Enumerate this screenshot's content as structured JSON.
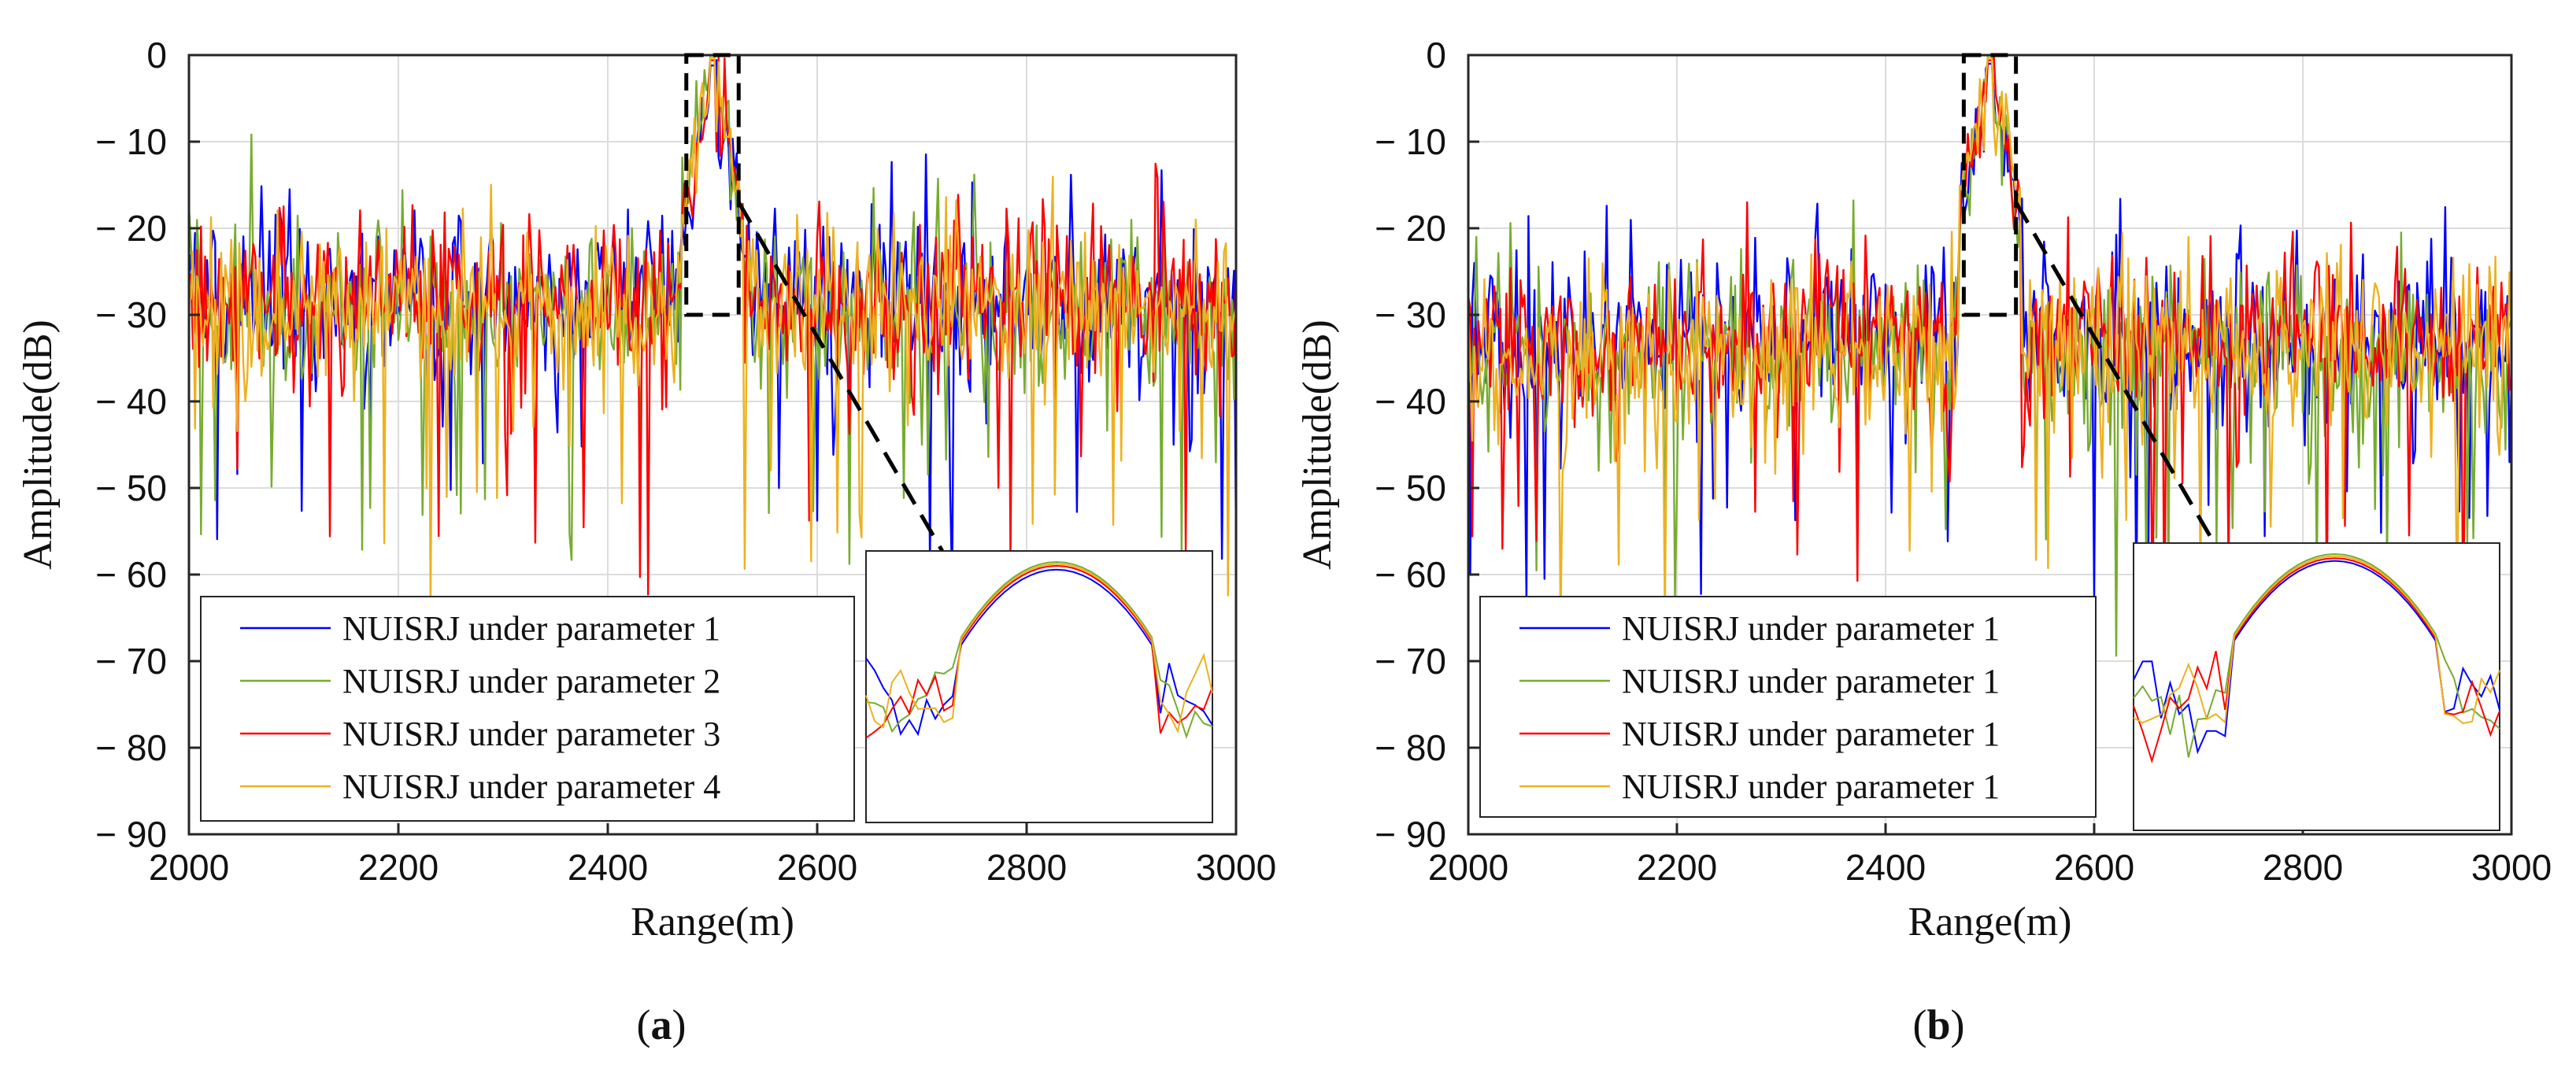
{
  "colors": {
    "series": [
      "#0000ff",
      "#77ac30",
      "#ff0000",
      "#edb120"
    ],
    "axis": "#262626",
    "grid": "#dcdcdc",
    "zoom_box": "#000000"
  },
  "chart_data": [
    {
      "type": "line",
      "panel_label": "a",
      "xlabel": "Range(m)",
      "ylabel": "Amplitude(dB)",
      "xlim": [
        2000,
        3000
      ],
      "ylim": [
        -90,
        0
      ],
      "grid": true,
      "x_ticks": [
        2000,
        2200,
        2400,
        2600,
        2800,
        3000
      ],
      "y_ticks": [
        0,
        -10,
        -20,
        -30,
        -40,
        -50,
        -60,
        -70,
        -80,
        -90
      ],
      "y_tick_labels": [
        "0",
        "− 10",
        "− 20",
        "− 30",
        "− 40",
        "− 50",
        "− 60",
        "− 70",
        "− 80",
        "− 90"
      ],
      "legend_position": "bottom-left",
      "inset_position": "bottom-right",
      "zoom_region": {
        "x": [
          2475,
          2525
        ],
        "y": [
          -30,
          0
        ]
      },
      "peak": {
        "x": 2500,
        "y": 0
      },
      "series": [
        {
          "name": "NUISRJ under parameter 1",
          "color": "#0000ff",
          "noise_floor_db": -28,
          "zoom_peak_db": -1.2
        },
        {
          "name": "NUISRJ under parameter 2",
          "color": "#77ac30",
          "noise_floor_db": -30,
          "zoom_peak_db": 0
        },
        {
          "name": "NUISRJ under parameter 3",
          "color": "#ff0000",
          "noise_floor_db": -28,
          "zoom_peak_db": -0.6
        },
        {
          "name": "NUISRJ under parameter 4",
          "color": "#edb120",
          "noise_floor_db": -29,
          "zoom_peak_db": -0.3
        }
      ]
    },
    {
      "type": "line",
      "panel_label": "b",
      "xlabel": "Range(m)",
      "ylabel": "Amplitude(dB)",
      "xlim": [
        2000,
        3000
      ],
      "ylim": [
        -90,
        0
      ],
      "grid": true,
      "x_ticks": [
        2000,
        2200,
        2400,
        2600,
        2800,
        3000
      ],
      "y_ticks": [
        0,
        -10,
        -20,
        -30,
        -40,
        -50,
        -60,
        -70,
        -80,
        -90
      ],
      "y_tick_labels": [
        "0",
        "− 10",
        "− 20",
        "− 30",
        "− 40",
        "− 50",
        "− 60",
        "− 70",
        "− 80",
        "− 90"
      ],
      "legend_position": "bottom-left",
      "inset_position": "bottom-right",
      "zoom_region": {
        "x": [
          2475,
          2525
        ],
        "y": [
          -30,
          0
        ]
      },
      "peak": {
        "x": 2500,
        "y": 0
      },
      "series": [
        {
          "name": "NUISRJ under parameter 1",
          "color": "#0000ff",
          "noise_floor_db": -33,
          "zoom_peak_db": -1.0
        },
        {
          "name": "NUISRJ under parameter 1",
          "color": "#77ac30",
          "noise_floor_db": -34,
          "zoom_peak_db": 0
        },
        {
          "name": "NUISRJ under parameter 1",
          "color": "#ff0000",
          "noise_floor_db": -33,
          "zoom_peak_db": -0.6
        },
        {
          "name": "NUISRJ under parameter 1",
          "color": "#edb120",
          "noise_floor_db": -34,
          "zoom_peak_db": -0.3
        }
      ]
    }
  ]
}
